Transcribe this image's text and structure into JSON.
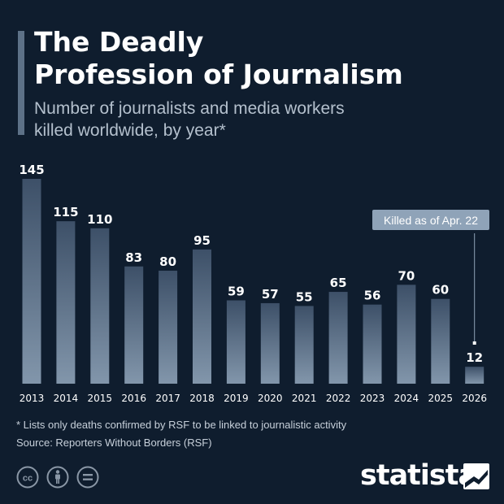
{
  "header": {
    "title_line1": "The Deadly",
    "title_line2": "Profession of Journalism",
    "subtitle_line1": "Number of journalists and media workers",
    "subtitle_line2": "killed worldwide, by year*"
  },
  "footer": {
    "footnote": "* Lists only deaths confirmed by RSF to be linked to journalistic activity",
    "source": "Source: Reporters Without Borders (RSF)",
    "logo": "statista"
  },
  "icons": [
    "cc-icon",
    "person-icon",
    "equals-icon",
    "statista-logo-icon"
  ],
  "colors": {
    "background": "#0f1d2e",
    "bar_top": "#3d5068",
    "bar_bottom": "#8296ab",
    "callout": "#8fa3b8"
  },
  "chart_data": {
    "type": "bar",
    "categories": [
      "2013",
      "2014",
      "2015",
      "2016",
      "2017",
      "2018",
      "2019",
      "2020",
      "2021",
      "2022",
      "2023",
      "2024",
      "2025",
      "2026"
    ],
    "values": [
      145,
      115,
      110,
      83,
      80,
      95,
      59,
      57,
      55,
      65,
      56,
      70,
      60,
      12
    ],
    "title": "The Deadly Profession of Journalism",
    "subtitle": "Number of journalists and media workers killed worldwide, by year*",
    "ylim": [
      0,
      145
    ],
    "grid": false,
    "annotation": {
      "category": "2026",
      "text": "Killed as of Apr. 22"
    }
  }
}
